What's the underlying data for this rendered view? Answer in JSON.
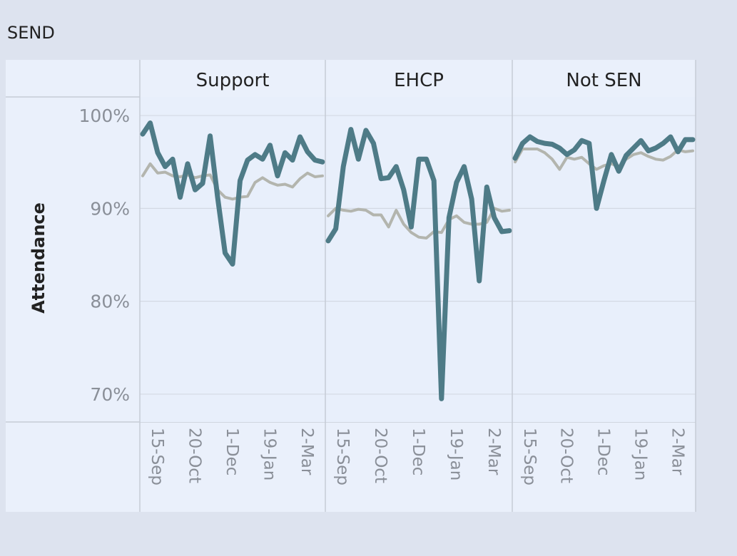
{
  "sheet_title": "SEND",
  "colors": {
    "background": "#dde3ef",
    "panel": "#e8effb",
    "header": "#eaf0fb",
    "gridline": "#d3d9e3",
    "border": "#c6ccd6",
    "series_main": "#4e7b87",
    "series_compare": "#b3b5ae"
  },
  "chart_data": {
    "type": "line",
    "ylabel": "Attendance",
    "ylim": [
      67,
      102
    ],
    "yticks": [
      "100%",
      "90%",
      "80%",
      "70%"
    ],
    "ytick_values": [
      100,
      90,
      80,
      70
    ],
    "xticks": [
      "15-Sep",
      "20-Oct",
      "1-Dec",
      "19-Jan",
      "2-Mar"
    ],
    "xtick_positions": [
      2,
      7,
      12,
      17,
      22
    ],
    "x_count": 25,
    "panels": [
      {
        "name": "Support",
        "series": [
          {
            "role": "main",
            "values": [
              98.0,
              99.2,
              96,
              94.5,
              95.3,
              91.2,
              94.8,
              92,
              92.7,
              97.8,
              91.2,
              85.2,
              84,
              93,
              95.2,
              95.8,
              95.3,
              96.8,
              93.5,
              96,
              95.2,
              97.7,
              96.1,
              95.2,
              95.0
            ]
          },
          {
            "role": "compare",
            "values": [
              93.5,
              94.8,
              93.8,
              93.9,
              93.5,
              93.4,
              93.6,
              93.3,
              93.5,
              93.6,
              92,
              91.2,
              91,
              91.2,
              91.3,
              92.8,
              93.3,
              92.8,
              92.5,
              92.6,
              92.3,
              93.2,
              93.8,
              93.4,
              93.5
            ]
          }
        ]
      },
      {
        "name": "EHCP",
        "series": [
          {
            "role": "main",
            "values": [
              86.5,
              87.8,
              94.5,
              98.5,
              95.3,
              98.4,
              97,
              93.2,
              93.3,
              94.5,
              92,
              88,
              95.3,
              95.3,
              93,
              69.5,
              89,
              92.8,
              94.5,
              91,
              82.2,
              92.3,
              89,
              87.5,
              87.6
            ]
          },
          {
            "role": "compare",
            "values": [
              89.2,
              90,
              89.8,
              89.7,
              89.9,
              89.8,
              89.3,
              89.3,
              88,
              89.8,
              88.3,
              87.4,
              86.9,
              86.8,
              87.5,
              87.4,
              88.8,
              89.2,
              88.5,
              88.3,
              88.3,
              88.5,
              90,
              89.7,
              89.8
            ]
          }
        ]
      },
      {
        "name": "Not SEN",
        "series": [
          {
            "role": "main",
            "values": [
              95.4,
              97,
              97.7,
              97.2,
              97,
              96.9,
              96.5,
              95.8,
              96.3,
              97.3,
              97,
              90,
              93,
              95.8,
              94,
              95.7,
              96.5,
              97.3,
              96.2,
              96.5,
              97,
              97.7,
              96.1,
              97.4,
              97.4
            ]
          },
          {
            "role": "compare",
            "values": [
              95,
              96.4,
              96.4,
              96.4,
              96,
              95.3,
              94.2,
              95.5,
              95.3,
              95.5,
              94.8,
              94.2,
              94.6,
              94.8,
              94.5,
              95.3,
              95.8,
              96,
              95.6,
              95.3,
              95.2,
              95.6,
              96.3,
              96.1,
              96.2
            ]
          }
        ]
      }
    ]
  }
}
